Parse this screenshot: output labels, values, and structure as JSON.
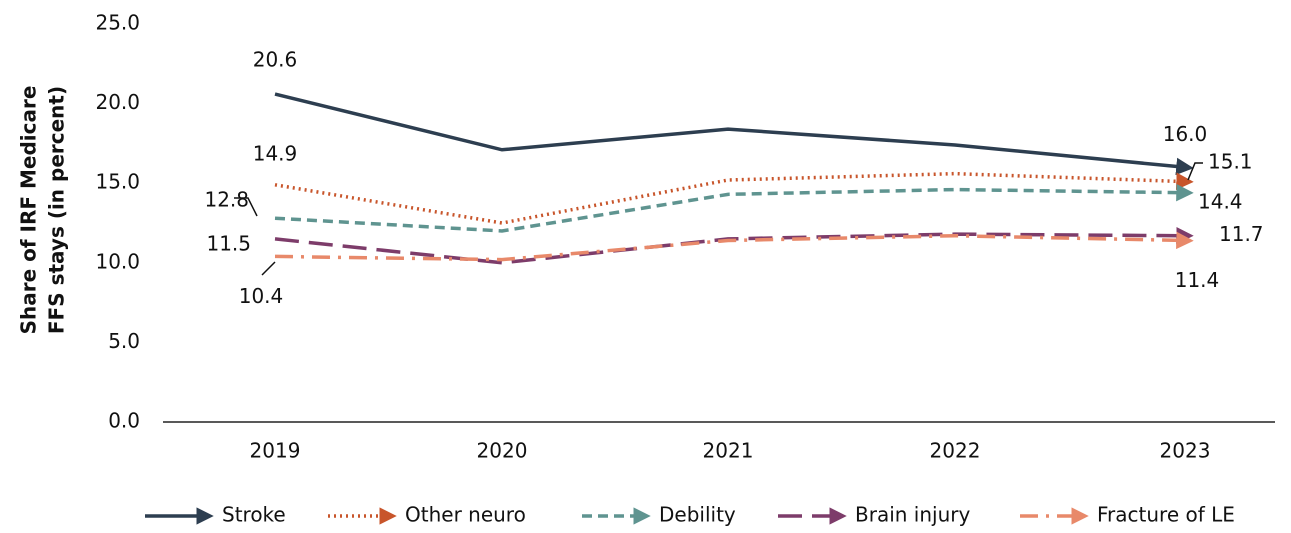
{
  "chart_data": {
    "type": "line",
    "y_label": [
      "Share of IRF Medicare",
      "FFS stays  (in percent)"
    ],
    "categories": [
      "2019",
      "2020",
      "2021",
      "2022",
      "2023"
    ],
    "ylim": [
      0,
      25
    ],
    "yticks": [
      {
        "value": 0,
        "label": "0.0"
      },
      {
        "value": 5,
        "label": "5.0"
      },
      {
        "value": 10,
        "label": "10.0"
      },
      {
        "value": 15,
        "label": "15.0"
      },
      {
        "value": 20,
        "label": "20.0"
      },
      {
        "value": 25,
        "label": "25.0"
      }
    ],
    "series": [
      {
        "name": "Stroke",
        "color": "#2d3e50",
        "dash": "solid",
        "values": [
          20.6,
          17.1,
          18.4,
          17.4,
          16.0
        ],
        "value_labels": [
          "20.6",
          null,
          null,
          null,
          "16.0"
        ]
      },
      {
        "name": "Other neuro",
        "color": "#c8552b",
        "dash": "dotted",
        "values": [
          14.9,
          12.5,
          15.2,
          15.6,
          15.1
        ],
        "value_labels": [
          "14.9",
          null,
          null,
          null,
          "15.1"
        ]
      },
      {
        "name": "Debility",
        "color": "#5f9490",
        "dash": "dashed",
        "values": [
          12.8,
          12.0,
          14.3,
          14.6,
          14.4
        ],
        "value_labels": [
          "12.8",
          null,
          null,
          null,
          "14.4"
        ]
      },
      {
        "name": "Brain injury",
        "color": "#7d3c6a",
        "dash": "longdash",
        "values": [
          11.5,
          10.0,
          11.5,
          11.8,
          11.7
        ],
        "value_labels": [
          "11.5",
          null,
          null,
          null,
          "11.7"
        ]
      },
      {
        "name": "Fracture of LE",
        "color": "#e8896a",
        "dash": "dashdot",
        "values": [
          10.4,
          10.2,
          11.4,
          11.7,
          11.4
        ],
        "value_labels": [
          "10.4",
          null,
          null,
          null,
          "11.4"
        ]
      }
    ]
  }
}
